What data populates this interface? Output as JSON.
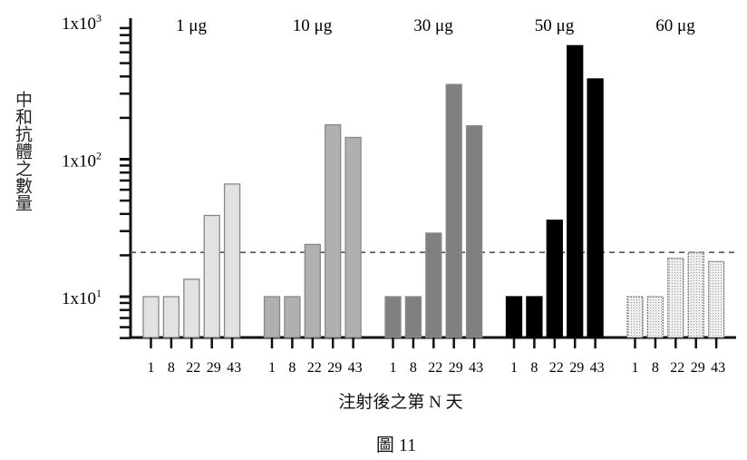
{
  "chart_data": {
    "type": "bar",
    "title": "",
    "xlabel": "注射後之第 N 天",
    "ylabel": "中和抗體之數量",
    "caption": "圖 11",
    "yscale": "log",
    "ylim": [
      5,
      1000
    ],
    "yticks": [
      {
        "value": 10,
        "label": "1x10",
        "exp": "1"
      },
      {
        "value": 100,
        "label": "1x10",
        "exp": "2"
      },
      {
        "value": 1000,
        "label": "1x10",
        "exp": "3"
      }
    ],
    "grid": false,
    "threshold_line": {
      "value": 21,
      "style": "dashed"
    },
    "categories": [
      "1",
      "8",
      "22",
      "29",
      "43"
    ],
    "series": [
      {
        "name": "1 μg",
        "color": "#e2e2e2",
        "values": [
          10,
          10,
          13.4,
          39,
          66
        ]
      },
      {
        "name": "10 μg",
        "color": "#b0b0b0",
        "values": [
          10,
          10,
          24,
          178,
          144
        ]
      },
      {
        "name": "30 μg",
        "color": "#808080",
        "values": [
          10,
          10,
          29,
          350,
          175
        ]
      },
      {
        "name": "50 μg",
        "color": "#000000",
        "values": [
          10,
          10,
          36,
          670,
          384
        ]
      },
      {
        "name": "60 μg",
        "color": "#e6e6e6",
        "pattern": "dotted",
        "values": [
          10,
          10,
          19,
          21,
          18
        ]
      }
    ]
  }
}
